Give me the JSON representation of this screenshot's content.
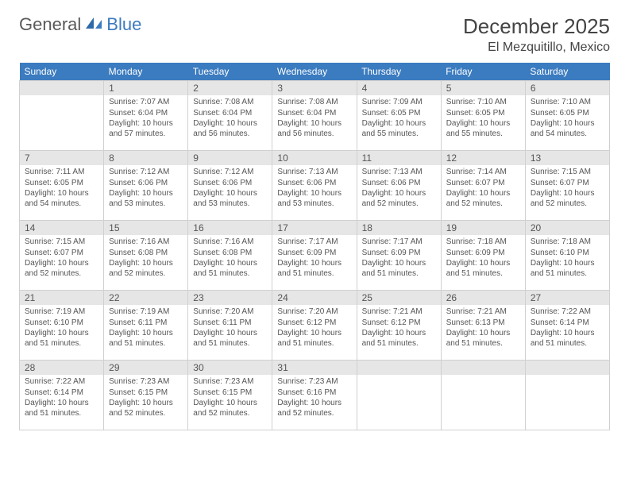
{
  "logo": {
    "text_general": "General",
    "text_blue": "Blue"
  },
  "title": "December 2025",
  "location": "El Mezquitillo, Mexico",
  "colors": {
    "header_bg": "#3b7bbf",
    "header_text": "#ffffff",
    "daynum_bg": "#e6e6e6",
    "body_text": "#555555",
    "border": "#d0d0d0"
  },
  "fonts": {
    "month_title_size": 26,
    "location_size": 16,
    "dow_size": 12,
    "cell_size": 10
  },
  "daysOfWeek": [
    "Sunday",
    "Monday",
    "Tuesday",
    "Wednesday",
    "Thursday",
    "Friday",
    "Saturday"
  ],
  "weeks": [
    [
      null,
      {
        "n": "1",
        "sunrise": "Sunrise: 7:07 AM",
        "sunset": "Sunset: 6:04 PM",
        "daylight": "Daylight: 10 hours and 57 minutes."
      },
      {
        "n": "2",
        "sunrise": "Sunrise: 7:08 AM",
        "sunset": "Sunset: 6:04 PM",
        "daylight": "Daylight: 10 hours and 56 minutes."
      },
      {
        "n": "3",
        "sunrise": "Sunrise: 7:08 AM",
        "sunset": "Sunset: 6:04 PM",
        "daylight": "Daylight: 10 hours and 56 minutes."
      },
      {
        "n": "4",
        "sunrise": "Sunrise: 7:09 AM",
        "sunset": "Sunset: 6:05 PM",
        "daylight": "Daylight: 10 hours and 55 minutes."
      },
      {
        "n": "5",
        "sunrise": "Sunrise: 7:10 AM",
        "sunset": "Sunset: 6:05 PM",
        "daylight": "Daylight: 10 hours and 55 minutes."
      },
      {
        "n": "6",
        "sunrise": "Sunrise: 7:10 AM",
        "sunset": "Sunset: 6:05 PM",
        "daylight": "Daylight: 10 hours and 54 minutes."
      }
    ],
    [
      {
        "n": "7",
        "sunrise": "Sunrise: 7:11 AM",
        "sunset": "Sunset: 6:05 PM",
        "daylight": "Daylight: 10 hours and 54 minutes."
      },
      {
        "n": "8",
        "sunrise": "Sunrise: 7:12 AM",
        "sunset": "Sunset: 6:06 PM",
        "daylight": "Daylight: 10 hours and 53 minutes."
      },
      {
        "n": "9",
        "sunrise": "Sunrise: 7:12 AM",
        "sunset": "Sunset: 6:06 PM",
        "daylight": "Daylight: 10 hours and 53 minutes."
      },
      {
        "n": "10",
        "sunrise": "Sunrise: 7:13 AM",
        "sunset": "Sunset: 6:06 PM",
        "daylight": "Daylight: 10 hours and 53 minutes."
      },
      {
        "n": "11",
        "sunrise": "Sunrise: 7:13 AM",
        "sunset": "Sunset: 6:06 PM",
        "daylight": "Daylight: 10 hours and 52 minutes."
      },
      {
        "n": "12",
        "sunrise": "Sunrise: 7:14 AM",
        "sunset": "Sunset: 6:07 PM",
        "daylight": "Daylight: 10 hours and 52 minutes."
      },
      {
        "n": "13",
        "sunrise": "Sunrise: 7:15 AM",
        "sunset": "Sunset: 6:07 PM",
        "daylight": "Daylight: 10 hours and 52 minutes."
      }
    ],
    [
      {
        "n": "14",
        "sunrise": "Sunrise: 7:15 AM",
        "sunset": "Sunset: 6:07 PM",
        "daylight": "Daylight: 10 hours and 52 minutes."
      },
      {
        "n": "15",
        "sunrise": "Sunrise: 7:16 AM",
        "sunset": "Sunset: 6:08 PM",
        "daylight": "Daylight: 10 hours and 52 minutes."
      },
      {
        "n": "16",
        "sunrise": "Sunrise: 7:16 AM",
        "sunset": "Sunset: 6:08 PM",
        "daylight": "Daylight: 10 hours and 51 minutes."
      },
      {
        "n": "17",
        "sunrise": "Sunrise: 7:17 AM",
        "sunset": "Sunset: 6:09 PM",
        "daylight": "Daylight: 10 hours and 51 minutes."
      },
      {
        "n": "18",
        "sunrise": "Sunrise: 7:17 AM",
        "sunset": "Sunset: 6:09 PM",
        "daylight": "Daylight: 10 hours and 51 minutes."
      },
      {
        "n": "19",
        "sunrise": "Sunrise: 7:18 AM",
        "sunset": "Sunset: 6:09 PM",
        "daylight": "Daylight: 10 hours and 51 minutes."
      },
      {
        "n": "20",
        "sunrise": "Sunrise: 7:18 AM",
        "sunset": "Sunset: 6:10 PM",
        "daylight": "Daylight: 10 hours and 51 minutes."
      }
    ],
    [
      {
        "n": "21",
        "sunrise": "Sunrise: 7:19 AM",
        "sunset": "Sunset: 6:10 PM",
        "daylight": "Daylight: 10 hours and 51 minutes."
      },
      {
        "n": "22",
        "sunrise": "Sunrise: 7:19 AM",
        "sunset": "Sunset: 6:11 PM",
        "daylight": "Daylight: 10 hours and 51 minutes."
      },
      {
        "n": "23",
        "sunrise": "Sunrise: 7:20 AM",
        "sunset": "Sunset: 6:11 PM",
        "daylight": "Daylight: 10 hours and 51 minutes."
      },
      {
        "n": "24",
        "sunrise": "Sunrise: 7:20 AM",
        "sunset": "Sunset: 6:12 PM",
        "daylight": "Daylight: 10 hours and 51 minutes."
      },
      {
        "n": "25",
        "sunrise": "Sunrise: 7:21 AM",
        "sunset": "Sunset: 6:12 PM",
        "daylight": "Daylight: 10 hours and 51 minutes."
      },
      {
        "n": "26",
        "sunrise": "Sunrise: 7:21 AM",
        "sunset": "Sunset: 6:13 PM",
        "daylight": "Daylight: 10 hours and 51 minutes."
      },
      {
        "n": "27",
        "sunrise": "Sunrise: 7:22 AM",
        "sunset": "Sunset: 6:14 PM",
        "daylight": "Daylight: 10 hours and 51 minutes."
      }
    ],
    [
      {
        "n": "28",
        "sunrise": "Sunrise: 7:22 AM",
        "sunset": "Sunset: 6:14 PM",
        "daylight": "Daylight: 10 hours and 51 minutes."
      },
      {
        "n": "29",
        "sunrise": "Sunrise: 7:23 AM",
        "sunset": "Sunset: 6:15 PM",
        "daylight": "Daylight: 10 hours and 52 minutes."
      },
      {
        "n": "30",
        "sunrise": "Sunrise: 7:23 AM",
        "sunset": "Sunset: 6:15 PM",
        "daylight": "Daylight: 10 hours and 52 minutes."
      },
      {
        "n": "31",
        "sunrise": "Sunrise: 7:23 AM",
        "sunset": "Sunset: 6:16 PM",
        "daylight": "Daylight: 10 hours and 52 minutes."
      },
      null,
      null,
      null
    ]
  ]
}
